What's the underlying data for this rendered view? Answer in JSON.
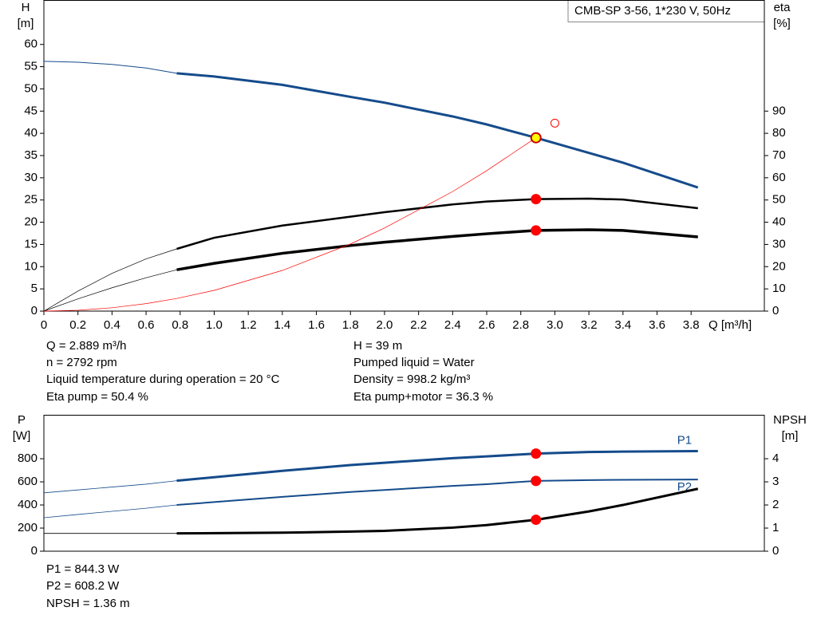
{
  "title": "CMB-SP 3-56, 1*230 V, 50Hz",
  "readouts_top": {
    "left": [
      "Q = 2.889 m³/h",
      "n = 2792 rpm",
      "Liquid temperature during operation = 20 °C",
      "Eta pump = 50.4 %"
    ],
    "right": [
      "H = 39 m",
      "Pumped liquid = Water",
      "Density = 998.2 kg/m³",
      "Eta pump+motor = 36.3 %"
    ]
  },
  "readouts_bottom": [
    "P1 = 844.3 W",
    "P2 = 608.2 W",
    "NPSH = 1.36 m"
  ],
  "chart_data": [
    {
      "type": "line",
      "y_label": "H",
      "y_unit": "[m]",
      "y2_label": "eta",
      "y2_unit": "[%]",
      "x_label": "Q [m³/h]",
      "xlim": [
        0,
        4.23
      ],
      "ylim": [
        0,
        70
      ],
      "y2lim": [
        0,
        140
      ],
      "xticks": [
        0,
        0.2,
        0.4,
        0.6,
        0.8,
        {
          "value": 1,
          "label": "1.0"
        },
        1.2,
        1.4,
        1.6,
        1.8,
        {
          "value": 2,
          "label": "2.0"
        },
        2.2,
        2.4,
        2.6,
        2.8,
        {
          "value": 3,
          "label": "3.0"
        },
        3.2,
        3.4,
        3.6,
        3.8
      ],
      "yticks": [
        0,
        5,
        10,
        15,
        20,
        25,
        30,
        35,
        40,
        45,
        50,
        55,
        60
      ],
      "y2ticks": [
        0,
        10,
        20,
        30,
        40,
        50,
        60,
        70,
        80,
        90
      ],
      "x": [
        0,
        0.2,
        0.4,
        0.6,
        0.78,
        1.0,
        1.4,
        1.8,
        2.0,
        2.4,
        2.6,
        2.889,
        3.2,
        3.4,
        3.84
      ],
      "series": [
        {
          "color": "#154b8b",
          "width": 1,
          "values": [
            56.2,
            56.0,
            55.5,
            54.7,
            53.5,
            null,
            null,
            null,
            null,
            null,
            null,
            null,
            null,
            null,
            null
          ]
        },
        {
          "color": "#154b8b",
          "width": 3,
          "values": [
            null,
            null,
            null,
            null,
            53.5,
            52.8,
            50.9,
            48.2,
            46.9,
            43.8,
            42.0,
            39.0,
            35.6,
            33.4,
            27.8
          ]
        },
        {
          "color": "#000000",
          "width": 0.7,
          "axis": "y2",
          "values": [
            0,
            9,
            17,
            23.5,
            28,
            null,
            null,
            null,
            null,
            null,
            null,
            null,
            null,
            null,
            null
          ]
        },
        {
          "color": "#000000",
          "width": 2.5,
          "axis": "y2",
          "values": [
            null,
            null,
            null,
            null,
            28,
            33,
            38.5,
            42.5,
            44.5,
            48,
            49.3,
            50.4,
            50.6,
            50.2,
            46.3
          ]
        },
        {
          "color": "#000000",
          "width": 0.7,
          "axis": "y2",
          "values": [
            0,
            5.5,
            10.5,
            15,
            18.6,
            null,
            null,
            null,
            null,
            null,
            null,
            null,
            null,
            null,
            null
          ]
        },
        {
          "color": "#000000",
          "width": 3.5,
          "axis": "y2",
          "values": [
            null,
            null,
            null,
            null,
            18.6,
            21.5,
            26,
            29.5,
            31,
            33.6,
            34.8,
            36.3,
            36.6,
            36.3,
            33.4
          ]
        },
        {
          "color": "#ff0000",
          "width": 0.7,
          "values": [
            0,
            0.19,
            0.75,
            1.68,
            2.84,
            4.67,
            9.15,
            15.1,
            18.7,
            26.9,
            31.6,
            39,
            null,
            null,
            null
          ]
        }
      ],
      "points": [
        {
          "x": 3.0,
          "y": 42.3,
          "color": "#ff0000",
          "filled": false
        },
        {
          "x": 2.889,
          "y": 39,
          "color": "#ffff00",
          "filled": true
        },
        {
          "x": 2.889,
          "y": 50.4,
          "axis": "y2",
          "color": "#ff0000",
          "filled": true
        },
        {
          "x": 2.889,
          "y": 36.3,
          "axis": "y2",
          "color": "#ff0000",
          "filled": true
        }
      ]
    },
    {
      "type": "line",
      "y_label": "P",
      "y_unit": "[W]",
      "y2_label": "NPSH",
      "y2_unit": "[m]",
      "xlim": [
        0,
        4.23
      ],
      "ylim": [
        0,
        1180
      ],
      "y2lim": [
        0,
        5.9
      ],
      "yticks": [
        0,
        200,
        400,
        600,
        800
      ],
      "y2ticks": [
        0,
        1,
        2,
        3,
        4
      ],
      "x": [
        0,
        0.2,
        0.4,
        0.6,
        0.78,
        1.0,
        1.4,
        1.8,
        2.0,
        2.4,
        2.6,
        2.889,
        3.2,
        3.4,
        3.84
      ],
      "series": [
        {
          "color": "#154b8b",
          "width": 0.8,
          "values": [
            505,
            530,
            555,
            580,
            610,
            null,
            null,
            null,
            null,
            null,
            null,
            null,
            null,
            null,
            null
          ]
        },
        {
          "name": "P1",
          "color": "#154b8b",
          "width": 3,
          "values": [
            null,
            null,
            null,
            null,
            610,
            640,
            695,
            745,
            765,
            805,
            820,
            844.3,
            858,
            862,
            866
          ]
        },
        {
          "color": "#154b8b",
          "width": 0.8,
          "values": [
            290,
            318,
            345,
            372,
            400,
            null,
            null,
            null,
            null,
            null,
            null,
            null,
            null,
            null,
            null
          ]
        },
        {
          "name": "P2",
          "color": "#154b8b",
          "width": 2,
          "values": [
            null,
            null,
            null,
            null,
            400,
            425,
            470,
            512,
            530,
            565,
            580,
            608.2,
            615,
            618,
            620
          ]
        },
        {
          "color": "#000000",
          "width": 0.8,
          "axis": "y2",
          "values": [
            0.77,
            0.77,
            0.77,
            0.77,
            0.77,
            null,
            null,
            null,
            null,
            null,
            null,
            null,
            null,
            null,
            null
          ]
        },
        {
          "color": "#000000",
          "width": 3,
          "axis": "y2",
          "values": [
            null,
            null,
            null,
            null,
            0.77,
            0.78,
            0.8,
            0.85,
            0.88,
            1.02,
            1.13,
            1.36,
            1.72,
            2.0,
            2.7
          ]
        }
      ],
      "points": [
        {
          "x": 2.889,
          "y": 844.3,
          "color": "#ff0000",
          "filled": true
        },
        {
          "x": 2.889,
          "y": 608.2,
          "color": "#ff0000",
          "filled": true
        },
        {
          "x": 2.889,
          "y": 1.36,
          "axis": "y2",
          "color": "#ff0000",
          "filled": true
        }
      ]
    }
  ]
}
